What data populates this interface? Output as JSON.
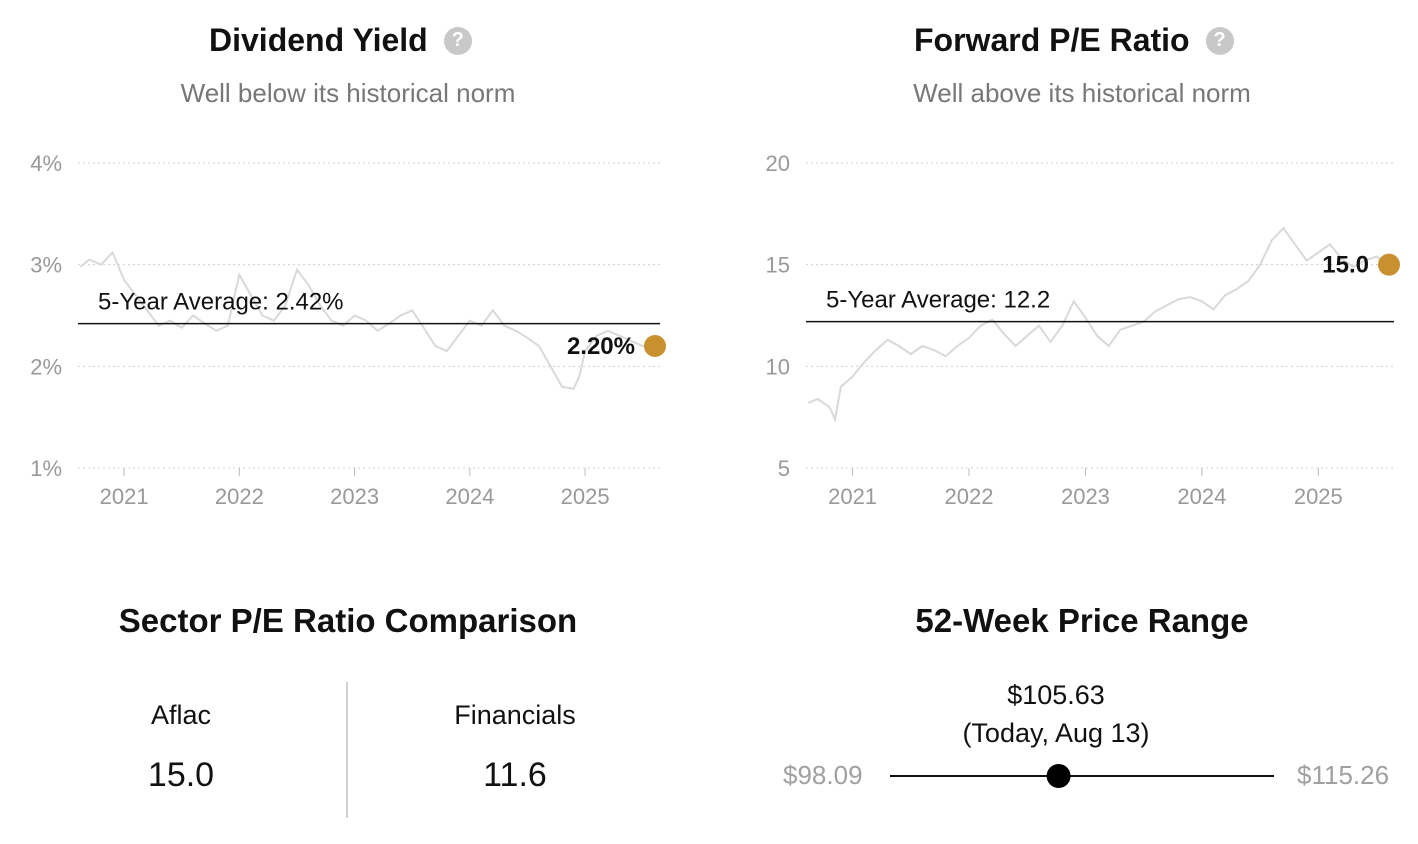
{
  "charts": {
    "dividend": {
      "title": "Dividend Yield",
      "help_icon": "question-circle-icon",
      "subtitle": "Well below its historical norm",
      "average_label": "5-Year Average: 2.42%",
      "current_label": "2.20%"
    },
    "pe": {
      "title": "Forward P/E Ratio",
      "help_icon": "question-circle-icon",
      "subtitle": "Well above its historical norm",
      "average_label": "5-Year Average: 12.2",
      "current_label": "15.0"
    }
  },
  "chart_data": [
    {
      "type": "line",
      "title": "Dividend Yield",
      "subtitle": "Well below its historical norm",
      "unit": "%",
      "ylim": [
        1,
        4
      ],
      "y_ticks": [
        "1%",
        "2%",
        "3%",
        "4%"
      ],
      "y_tick_values": [
        1,
        2,
        3,
        4
      ],
      "x_ticks": [
        "2021",
        "2022",
        "2023",
        "2024",
        "2025"
      ],
      "xlim": [
        2020.6,
        2025.65
      ],
      "grid": true,
      "average": 2.42,
      "current": 2.2,
      "series_color": "#d9d9d9",
      "average_line_color": "#111111",
      "marker_color": "#c8902f",
      "x": [
        2020.62,
        2020.7,
        2020.8,
        2020.9,
        2021.0,
        2021.1,
        2021.2,
        2021.3,
        2021.4,
        2021.5,
        2021.6,
        2021.7,
        2021.8,
        2021.9,
        2022.0,
        2022.1,
        2022.2,
        2022.3,
        2022.4,
        2022.5,
        2022.6,
        2022.7,
        2022.8,
        2022.9,
        2023.0,
        2023.1,
        2023.2,
        2023.3,
        2023.4,
        2023.5,
        2023.6,
        2023.7,
        2023.8,
        2023.9,
        2024.0,
        2024.1,
        2024.2,
        2024.3,
        2024.4,
        2024.5,
        2024.6,
        2024.7,
        2024.8,
        2024.9,
        2024.95,
        2025.0,
        2025.1,
        2025.2,
        2025.3,
        2025.4,
        2025.5,
        2025.6
      ],
      "y": [
        2.98,
        3.05,
        3.0,
        3.12,
        2.85,
        2.7,
        2.55,
        2.4,
        2.45,
        2.38,
        2.5,
        2.42,
        2.35,
        2.4,
        2.9,
        2.7,
        2.5,
        2.45,
        2.6,
        2.95,
        2.8,
        2.6,
        2.45,
        2.4,
        2.5,
        2.45,
        2.35,
        2.42,
        2.5,
        2.55,
        2.38,
        2.2,
        2.15,
        2.3,
        2.45,
        2.4,
        2.55,
        2.4,
        2.35,
        2.28,
        2.2,
        2.0,
        1.8,
        1.78,
        1.9,
        2.15,
        2.3,
        2.35,
        2.3,
        2.25,
        2.2,
        2.2
      ]
    },
    {
      "type": "line",
      "title": "Forward P/E Ratio",
      "subtitle": "Well above its historical norm",
      "ylim": [
        5,
        20
      ],
      "y_ticks": [
        "5",
        "10",
        "15",
        "20"
      ],
      "y_tick_values": [
        5,
        10,
        15,
        20
      ],
      "x_ticks": [
        "2021",
        "2022",
        "2023",
        "2024",
        "2025"
      ],
      "xlim": [
        2020.6,
        2025.65
      ],
      "grid": true,
      "average": 12.2,
      "current": 15.0,
      "series_color": "#d9d9d9",
      "average_line_color": "#111111",
      "marker_color": "#c8902f",
      "x": [
        2020.62,
        2020.7,
        2020.8,
        2020.85,
        2020.9,
        2021.0,
        2021.1,
        2021.2,
        2021.3,
        2021.4,
        2021.5,
        2021.6,
        2021.7,
        2021.8,
        2021.9,
        2022.0,
        2022.1,
        2022.2,
        2022.3,
        2022.4,
        2022.5,
        2022.6,
        2022.7,
        2022.8,
        2022.9,
        2023.0,
        2023.1,
        2023.2,
        2023.3,
        2023.4,
        2023.5,
        2023.6,
        2023.7,
        2023.8,
        2023.9,
        2024.0,
        2024.1,
        2024.2,
        2024.3,
        2024.4,
        2024.5,
        2024.6,
        2024.7,
        2024.8,
        2024.9,
        2025.0,
        2025.1,
        2025.2,
        2025.3,
        2025.4,
        2025.5,
        2025.6
      ],
      "y": [
        8.2,
        8.4,
        8.0,
        7.4,
        9.0,
        9.5,
        10.2,
        10.8,
        11.3,
        11.0,
        10.6,
        11.0,
        10.8,
        10.5,
        11.0,
        11.4,
        12.0,
        12.3,
        11.6,
        11.0,
        11.5,
        12.0,
        11.2,
        12.0,
        13.2,
        12.4,
        11.5,
        11.0,
        11.8,
        12.0,
        12.2,
        12.7,
        13.0,
        13.3,
        13.4,
        13.2,
        12.8,
        13.5,
        13.8,
        14.2,
        15.0,
        16.2,
        16.8,
        16.0,
        15.2,
        15.6,
        16.0,
        15.3,
        14.9,
        15.2,
        15.4,
        15.0
      ]
    }
  ],
  "sector_comparison": {
    "title": "Sector P/E Ratio Comparison",
    "items": [
      {
        "label": "Aflac",
        "value": "15.0"
      },
      {
        "label": "Financials",
        "value": "11.6"
      }
    ]
  },
  "price_range": {
    "title": "52-Week Price Range",
    "current_price": "$105.63",
    "current_note": "(Today, Aug 13)",
    "low": "$98.09",
    "high": "$115.26",
    "low_value": 98.09,
    "high_value": 115.26,
    "current_value": 105.63
  }
}
